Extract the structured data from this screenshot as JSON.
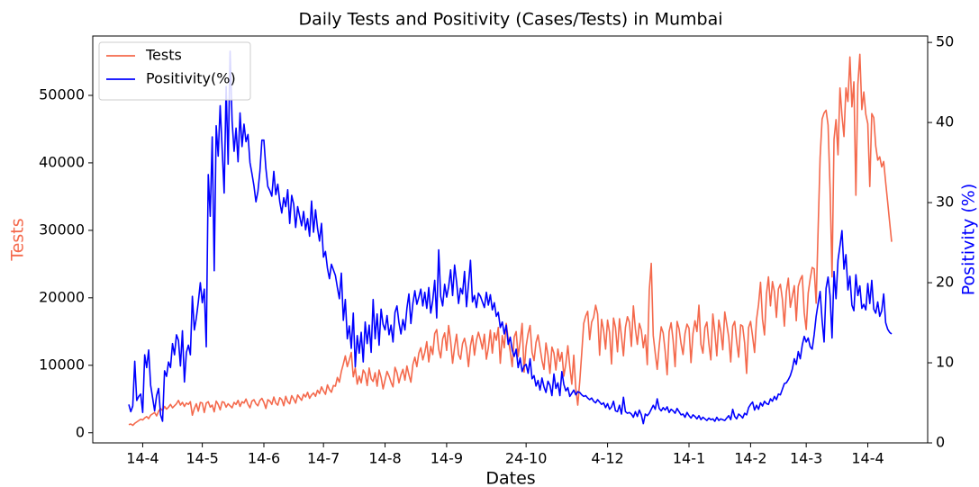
{
  "chart_data": {
    "type": "line",
    "title": "Daily Tests and Positivity (Cases/Tests) in Mumbai",
    "xlabel": "Dates",
    "ylabel": "Tests",
    "y2label": "Positivity (%)",
    "legend": "upper left",
    "grid": false,
    "categories": [
      "7-4",
      "8-4",
      "9-4",
      "10-4",
      "11-4",
      "12-4",
      "13-4",
      "14-4",
      "15-4",
      "16-4",
      "17-4",
      "18-4",
      "19-4",
      "20-4",
      "21-4",
      "22-4",
      "23-4",
      "24-4",
      "25-4",
      "26-4",
      "27-4",
      "28-4",
      "29-4",
      "30-4",
      "1-5",
      "2-5",
      "3-5",
      "4-5",
      "5-5",
      "6-5",
      "7-5",
      "8-5",
      "9-5",
      "10-5",
      "11-5",
      "12-5",
      "13-5",
      "14-5",
      "15-5",
      "16-5",
      "17-5",
      "18-5",
      "19-5",
      "20-5",
      "21-5",
      "22-5",
      "23-5",
      "24-5",
      "25-5",
      "26-5",
      "27-5",
      "28-5",
      "29-5",
      "30-5",
      "31-5",
      "1-6",
      "2-6",
      "3-6",
      "4-6",
      "5-6",
      "6-6",
      "7-6",
      "8-6",
      "9-6",
      "10-6",
      "11-6",
      "12-6",
      "13-6",
      "14-6",
      "15-6",
      "16-6",
      "17-6",
      "18-6",
      "19-6",
      "20-6",
      "21-6",
      "22-6",
      "23-6",
      "24-6",
      "25-6",
      "26-6",
      "27-6",
      "28-6",
      "29-6",
      "30-6",
      "1-7",
      "2-7",
      "3-7",
      "4-7",
      "5-7",
      "6-7",
      "7-7",
      "8-7",
      "9-7",
      "10-7",
      "11-7",
      "12-7",
      "13-7",
      "14-7",
      "15-7",
      "16-7",
      "17-7",
      "18-7",
      "19-7",
      "20-7",
      "21-7",
      "22-7",
      "23-7",
      "24-7",
      "25-7",
      "26-7",
      "27-7",
      "28-7",
      "29-7",
      "30-7",
      "31-7",
      "1-8",
      "2-8",
      "3-8",
      "4-8",
      "5-8",
      "6-8",
      "7-8",
      "8-8",
      "9-8",
      "10-8",
      "11-8",
      "12-8",
      "13-8",
      "14-8",
      "15-8",
      "16-8",
      "17-8",
      "18-8",
      "19-8",
      "20-8",
      "21-8",
      "22-8",
      "23-8",
      "24-8",
      "25-8",
      "26-8",
      "27-8",
      "28-8",
      "29-8",
      "30-8",
      "31-8",
      "1-9",
      "2-9",
      "3-9",
      "4-9",
      "5-9",
      "6-9",
      "7-9",
      "8-9",
      "9-9",
      "10-9",
      "11-9",
      "12-9",
      "13-9",
      "14-9",
      "15-9",
      "16-9",
      "17-9",
      "18-9",
      "19-9",
      "20-9",
      "21-9",
      "22-9",
      "23-9",
      "24-9",
      "25-9",
      "26-9",
      "27-9",
      "28-9",
      "29-9",
      "30-9",
      "1-10",
      "2-10",
      "3-10",
      "4-10",
      "5-10",
      "6-10",
      "7-10",
      "8-10",
      "9-10",
      "10-10",
      "11-10",
      "12-10",
      "13-10",
      "14-10",
      "15-10",
      "16-10",
      "17-10",
      "18-10",
      "19-10",
      "20-10",
      "21-10",
      "22-10",
      "23-10",
      "24-10",
      "25-10",
      "26-10",
      "27-10",
      "28-10",
      "29-10",
      "30-10",
      "31-10",
      "1-11",
      "2-11",
      "3-11",
      "4-11",
      "5-11",
      "6-11",
      "7-11",
      "8-11",
      "9-11",
      "10-11",
      "11-11",
      "12-11",
      "13-11",
      "14-11",
      "15-11",
      "16-11",
      "17-11",
      "18-11",
      "19-11",
      "20-11",
      "21-11",
      "22-11",
      "23-11",
      "24-11",
      "25-11",
      "26-11",
      "27-11",
      "28-11",
      "29-11",
      "30-11",
      "1-12",
      "2-12",
      "3-12",
      "4-12",
      "5-12",
      "6-12",
      "7-12",
      "8-12",
      "9-12",
      "10-12",
      "11-12",
      "12-12",
      "13-12",
      "14-12",
      "15-12",
      "16-12",
      "17-12",
      "18-12",
      "19-12",
      "20-12",
      "21-12",
      "22-12",
      "23-12",
      "24-12",
      "25-12",
      "26-12",
      "27-12",
      "28-12",
      "29-12",
      "30-12",
      "31-12",
      "1-1",
      "2-1",
      "3-1",
      "4-1",
      "5-1",
      "6-1",
      "7-1",
      "8-1",
      "9-1",
      "10-1",
      "11-1",
      "12-1",
      "13-1",
      "14-1",
      "15-1",
      "16-1",
      "17-1",
      "18-1",
      "19-1",
      "20-1",
      "21-1",
      "22-1",
      "23-1",
      "24-1",
      "25-1",
      "26-1",
      "27-1",
      "28-1",
      "29-1",
      "30-1",
      "31-1",
      "1-2",
      "2-2",
      "3-2",
      "4-2",
      "5-2",
      "6-2",
      "7-2",
      "8-2",
      "9-2",
      "10-2",
      "11-2",
      "12-2",
      "13-2",
      "14-2",
      "15-2",
      "16-2",
      "17-2",
      "18-2",
      "19-2",
      "20-2",
      "21-2",
      "22-2",
      "23-2",
      "24-2",
      "25-2",
      "26-2",
      "27-2",
      "28-2",
      "1-3",
      "2-3",
      "3-3",
      "4-3",
      "5-3",
      "6-3",
      "7-3",
      "8-3",
      "9-3",
      "10-3",
      "11-3",
      "12-3",
      "13-3",
      "14-3",
      "15-3",
      "16-3",
      "17-3",
      "18-3",
      "19-3",
      "20-3",
      "21-3",
      "22-3",
      "23-3",
      "24-3",
      "25-3",
      "26-3",
      "27-3",
      "28-3",
      "29-3",
      "30-3",
      "31-3",
      "1-4",
      "2-4",
      "3-4",
      "4-4",
      "5-4",
      "6-4",
      "7-4",
      "8-4",
      "9-4",
      "10-4",
      "11-4",
      "12-4",
      "13-4",
      "14-4",
      "15-4",
      "16-4",
      "17-4",
      "18-4",
      "19-4",
      "20-4",
      "21-4",
      "22-4",
      "23-4",
      "24-4",
      "25-4",
      "26-4"
    ],
    "xticks": [
      "14-4",
      "14-5",
      "14-6",
      "14-7",
      "14-8",
      "14-9",
      "24-10",
      "4-12",
      "14-1",
      "14-2",
      "14-3",
      "14-4"
    ],
    "ylim": [
      -1500,
      58800
    ],
    "yticks": [
      0,
      10000,
      20000,
      30000,
      40000,
      50000
    ],
    "y2lim": [
      0,
      50.8
    ],
    "y2ticks": [
      0,
      10,
      20,
      30,
      40,
      50
    ],
    "series": [
      {
        "name": "Tests",
        "color": "#f4694c",
        "axis": "y",
        "values": [
          1200,
          1300,
          1100,
          1400,
          1600,
          1800,
          2000,
          1900,
          2200,
          2400,
          2100,
          2600,
          2800,
          3000,
          2500,
          3200,
          3600,
          3300,
          3900,
          3500,
          3800,
          4200,
          3700,
          4000,
          4300,
          4800,
          4100,
          4500,
          3900,
          4400,
          4200,
          4600,
          2600,
          3600,
          4300,
          3200,
          4500,
          4400,
          3000,
          4400,
          4600,
          3800,
          4100,
          3100,
          4700,
          4200,
          3400,
          4600,
          4500,
          3800,
          4300,
          4000,
          3700,
          4500,
          4200,
          4800,
          3900,
          4600,
          4400,
          5000,
          4200,
          3700,
          4700,
          4900,
          4300,
          4000,
          4800,
          5100,
          4500,
          3600,
          4900,
          4700,
          4200,
          5300,
          4400,
          4100,
          5200,
          4900,
          4000,
          5400,
          4600,
          4300,
          5500,
          5000,
          4400,
          5600,
          5200,
          4800,
          5700,
          5300,
          6000,
          5100,
          5600,
          5900,
          5400,
          6300,
          5800,
          6800,
          6200,
          5700,
          7100,
          6400,
          6000,
          7000,
          6900,
          8200,
          7500,
          9100,
          10200,
          11400,
          9800,
          10800,
          11900,
          8300,
          9600,
          7200,
          8400,
          7400,
          9300,
          8800,
          7000,
          9600,
          8000,
          7600,
          8900,
          6900,
          9300,
          8200,
          6500,
          7800,
          9100,
          8400,
          7500,
          6800,
          9700,
          8900,
          7400,
          8600,
          9400,
          7800,
          9900,
          8600,
          7500,
          10100,
          11200,
          9800,
          11800,
          12600,
          10800,
          11900,
          13500,
          10500,
          12800,
          11600,
          14700,
          15300,
          12400,
          11100,
          13900,
          14800,
          12200,
          15900,
          13600,
          10300,
          12700,
          14600,
          11600,
          10900,
          13200,
          14000,
          12500,
          9800,
          12900,
          14400,
          11500,
          13700,
          14900,
          13800,
          12400,
          14600,
          10900,
          12600,
          15200,
          11800,
          14800,
          13700,
          15600,
          10300,
          14400,
          12600,
          16200,
          13900,
          12100,
          9800,
          14200,
          15000,
          11300,
          13500,
          16200,
          9000,
          12800,
          14700,
          15900,
          11900,
          10700,
          13400,
          14500,
          12600,
          10700,
          9400,
          13300,
          11500,
          8800,
          12700,
          11800,
          9300,
          12400,
          10600,
          11900,
          8400,
          10200,
          12900,
          9800,
          7200,
          11500,
          6600,
          4100,
          7600,
          11800,
          16200,
          17300,
          18000,
          13800,
          16400,
          17100,
          18900,
          17600,
          11500,
          16800,
          15200,
          12400,
          16700,
          14900,
          10200,
          17000,
          15600,
          12000,
          16900,
          14300,
          11400,
          15600,
          17200,
          16400,
          12800,
          18800,
          15400,
          13100,
          16200,
          15200,
          12600,
          14500,
          10100,
          21100,
          25100,
          14400,
          11800,
          9400,
          12900,
          15700,
          14800,
          12100,
          8600,
          15000,
          16300,
          13700,
          9800,
          16500,
          15400,
          13200,
          11600,
          14700,
          16100,
          15500,
          10400,
          14700,
          16600,
          15000,
          18900,
          13100,
          11800,
          15600,
          16400,
          13200,
          10800,
          17600,
          14900,
          11400,
          16700,
          15000,
          12300,
          17900,
          16100,
          14200,
          10500,
          15800,
          16500,
          13500,
          11200,
          16000,
          15800,
          13300,
          8800,
          15600,
          16500,
          14300,
          11900,
          16800,
          19000,
          22300,
          16800,
          14500,
          20600,
          23100,
          18800,
          22400,
          20900,
          17100,
          21300,
          22000,
          19800,
          15800,
          20900,
          22900,
          18600,
          20200,
          21800,
          16600,
          21700,
          22700,
          23300,
          17800,
          15300,
          20700,
          22800,
          24500,
          24300,
          19200,
          30200,
          40800,
          46500,
          47400,
          47800,
          45600,
          36300,
          23100,
          43500,
          46400,
          41200,
          51100,
          47000,
          43900,
          51100,
          49100,
          55700,
          48300,
          52000,
          35200,
          51600,
          56100,
          47900,
          50500,
          47200,
          45800,
          36500,
          47300,
          46700,
          42500,
          40400,
          40900,
          39400,
          40200,
          37100,
          34200,
          31200,
          28300
        ]
      },
      {
        "name": "Positivity(%)",
        "color": "#0000ff",
        "axis": "y2",
        "values": [
          4.8,
          3.9,
          4.6,
          10.2,
          5.3,
          5.8,
          6.1,
          3.8,
          11.0,
          9.4,
          11.6,
          7.2,
          5.6,
          4.0,
          5.9,
          6.8,
          3.5,
          2.7,
          9.0,
          8.3,
          10.1,
          9.4,
          12.4,
          11.0,
          13.5,
          12.8,
          9.6,
          14.0,
          7.6,
          11.3,
          12.2,
          11.0,
          18.3,
          14.1,
          15.6,
          17.6,
          20.0,
          17.5,
          19.2,
          12.0,
          33.5,
          28.3,
          38.2,
          21.5,
          39.6,
          35.8,
          42.1,
          36.7,
          31.2,
          44.5,
          34.8,
          48.9,
          40.2,
          36.4,
          39.3,
          35.1,
          41.2,
          37.0,
          39.8,
          37.6,
          38.5,
          35.0,
          33.6,
          32.1,
          30.1,
          31.4,
          33.9,
          37.8,
          37.8,
          34.3,
          32.0,
          31.5,
          30.8,
          33.9,
          31.0,
          32.3,
          30.1,
          28.7,
          30.6,
          29.5,
          31.6,
          27.4,
          30.9,
          29.8,
          26.9,
          29.5,
          28.3,
          27.1,
          28.9,
          26.6,
          28.0,
          25.8,
          30.2,
          26.3,
          29.1,
          26.8,
          25.2,
          27.4,
          23.2,
          23.9,
          21.8,
          20.5,
          22.3,
          21.6,
          20.9,
          19.4,
          18.0,
          21.2,
          15.3,
          17.9,
          13.0,
          14.6,
          11.8,
          16.2,
          9.5,
          13.4,
          11.2,
          13.8,
          10.1,
          15.1,
          12.4,
          14.7,
          11.3,
          17.9,
          13.0,
          16.1,
          12.2,
          16.7,
          14.8,
          14.1,
          15.9,
          13.5,
          14.7,
          12.6,
          16.3,
          17.1,
          15.0,
          13.6,
          15.4,
          14.1,
          16.8,
          18.6,
          14.9,
          17.4,
          19.0,
          17.3,
          18.2,
          19.2,
          17.1,
          18.8,
          16.8,
          19.4,
          16.2,
          17.8,
          20.3,
          15.6,
          24.1,
          18.3,
          17.1,
          19.8,
          18.2,
          19.5,
          21.6,
          18.4,
          22.2,
          20.1,
          17.4,
          19.3,
          18.6,
          21.4,
          17.0,
          19.8,
          22.8,
          17.6,
          18.4,
          16.9,
          18.7,
          18.3,
          17.6,
          16.9,
          18.8,
          17.2,
          18.5,
          16.6,
          17.5,
          15.8,
          16.3,
          14.4,
          15.1,
          13.6,
          14.7,
          12.3,
          13.2,
          11.6,
          10.8,
          11.7,
          9.4,
          10.6,
          8.9,
          9.6,
          9.8,
          8.7,
          10.5,
          8.0,
          8.4,
          7.1,
          7.8,
          6.6,
          8.1,
          7.0,
          6.3,
          7.7,
          7.2,
          5.9,
          8.6,
          6.8,
          7.5,
          5.9,
          8.9,
          7.3,
          6.5,
          6.9,
          5.8,
          6.2,
          6.6,
          6.0,
          6.4,
          6.3,
          6.0,
          5.8,
          5.9,
          5.6,
          5.4,
          5.6,
          5.2,
          5.0,
          5.4,
          5.1,
          4.8,
          5.0,
          4.4,
          4.9,
          4.2,
          4.5,
          5.2,
          4.0,
          3.9,
          4.7,
          3.6,
          5.7,
          3.9,
          3.7,
          3.8,
          3.6,
          3.2,
          3.9,
          3.3,
          4.1,
          3.5,
          2.4,
          3.6,
          3.4,
          3.7,
          4.2,
          4.7,
          4.2,
          5.5,
          4.3,
          4.0,
          4.4,
          4.1,
          4.5,
          3.8,
          4.2,
          4.0,
          3.7,
          4.3,
          3.9,
          3.5,
          3.6,
          3.2,
          3.8,
          3.4,
          3.1,
          3.5,
          3.3,
          3.0,
          3.4,
          2.9,
          3.2,
          3.0,
          2.8,
          3.1,
          2.9,
          3.0,
          2.7,
          3.2,
          2.8,
          3.0,
          2.9,
          2.8,
          3.1,
          3.4,
          2.9,
          4.2,
          3.3,
          3.0,
          3.6,
          3.4,
          3.1,
          3.7,
          3.5,
          4.4,
          4.8,
          5.1,
          4.1,
          4.7,
          4.2,
          5.0,
          4.6,
          5.2,
          4.9,
          4.8,
          5.5,
          5.2,
          5.8,
          5.4,
          6.1,
          6.0,
          6.7,
          7.4,
          7.5,
          7.9,
          8.4,
          9.2,
          10.5,
          9.8,
          11.4,
          10.5,
          12.2,
          13.3,
          12.6,
          13.1,
          12.0,
          11.7,
          13.5,
          15.8,
          17.4,
          18.9,
          15.3,
          12.6,
          19.3,
          20.7,
          18.4,
          13.1,
          21.4,
          18.0,
          22.8,
          24.6,
          26.5,
          21.7,
          23.5,
          19.1,
          20.8,
          17.2,
          16.5,
          21.0,
          18.4,
          19.6,
          16.8,
          17.3,
          16.6,
          19.9,
          17.4,
          20.3,
          16.7,
          16.2,
          17.6,
          15.8,
          16.5,
          18.6,
          15.0,
          14.2,
          13.8,
          13.6
        ]
      }
    ]
  }
}
